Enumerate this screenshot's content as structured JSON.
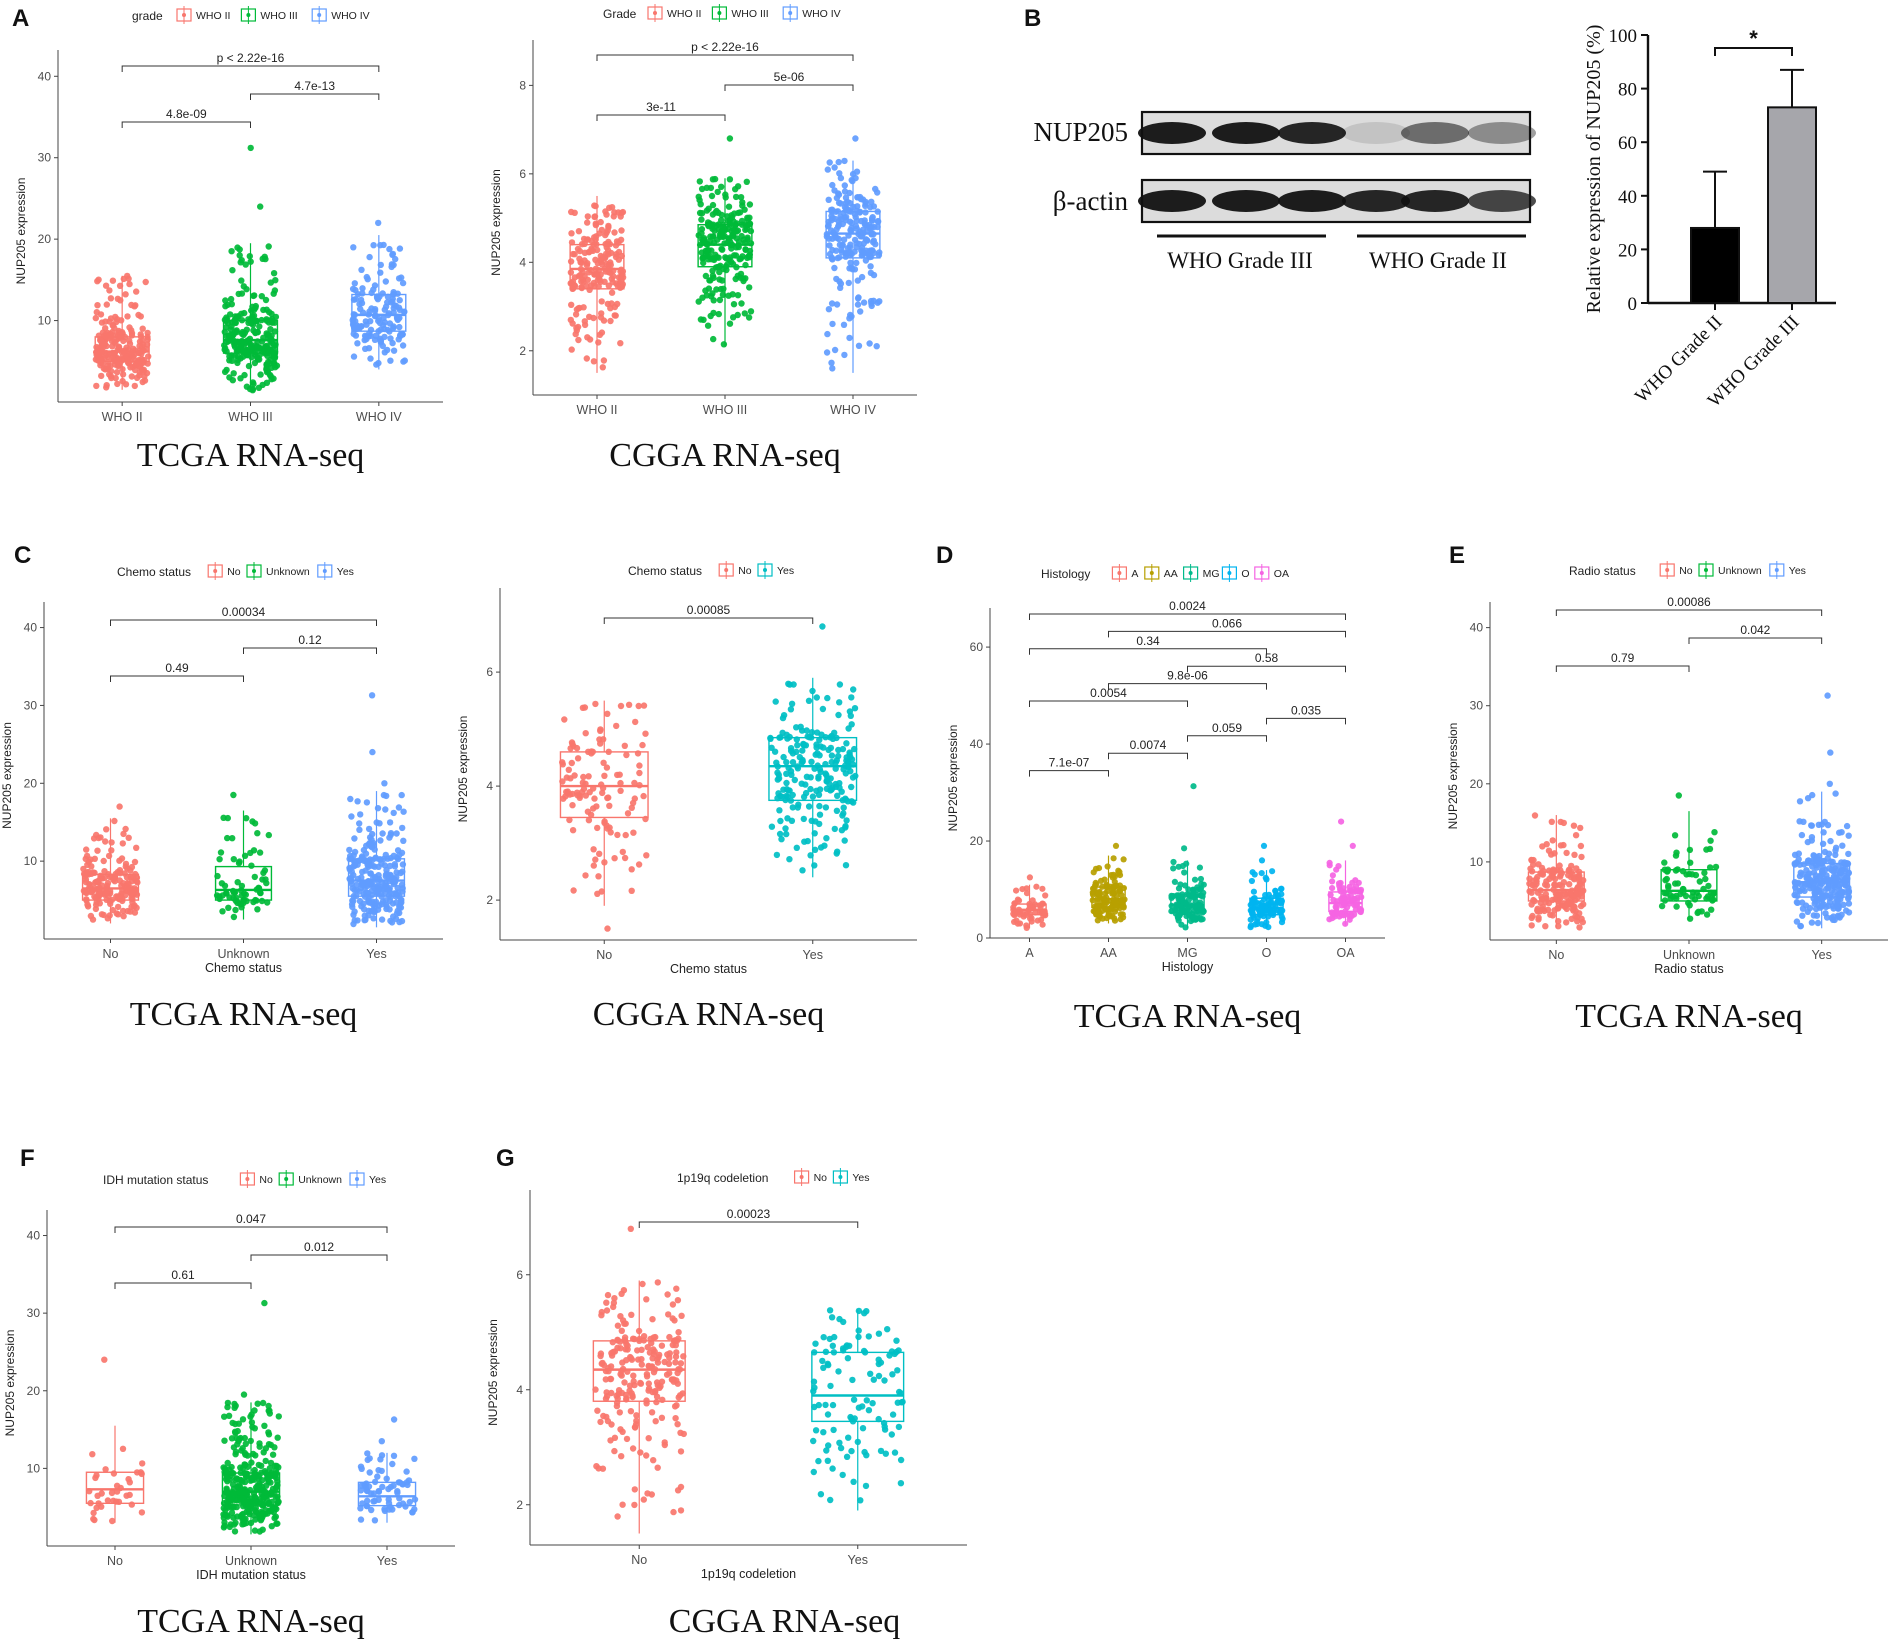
{
  "figure": {
    "y_label": "NUP205 expression",
    "tcga_caption": "TCGA RNA-seq",
    "cgga_caption": "CGGA RNA-seq"
  },
  "colors": {
    "red": "#F8766D",
    "green": "#00BA38",
    "blue": "#619CFF",
    "teal": "#00BFC4",
    "olive": "#B79F00",
    "mg": "#00BA8A",
    "o": "#00B4F0",
    "oa": "#F564E3",
    "wb_band": "#111111",
    "bar_black": "#000000",
    "bar_gray": "#A6A6AB"
  },
  "western_blot": {
    "panel": "B",
    "band_labels": [
      "NUP205",
      "β-actin"
    ],
    "group_labels": [
      "WHO Grade III",
      "WHO Grade II"
    ],
    "nup205_intensity": [
      0.95,
      0.95,
      0.9,
      0.12,
      0.55,
      0.4
    ],
    "actin_intensity": [
      0.95,
      0.95,
      0.95,
      0.9,
      0.9,
      0.75
    ]
  },
  "chart_data": [
    {
      "type": "boxplot",
      "panel": "A",
      "legend_title": "grade",
      "categories": [
        "WHO II",
        "WHO III",
        "WHO IV"
      ],
      "legend": [
        "WHO II",
        "WHO III",
        "WHO IV"
      ],
      "colors": [
        "#F8766D",
        "#00BA38",
        "#619CFF"
      ],
      "ylabel": "NUP205 expression",
      "xlabel": "",
      "yticks": [
        10,
        20,
        30,
        40
      ],
      "ylim": [
        0,
        42
      ],
      "boxes": [
        {
          "min": 1.5,
          "q1": 5,
          "median": 6.2,
          "q3": 8,
          "max": 15.5,
          "n": 230,
          "outliers": []
        },
        {
          "min": 1.2,
          "q1": 6,
          "median": 7.6,
          "q3": 10,
          "max": 19.5,
          "n": 250,
          "outliers": [
            24,
            31.2
          ]
        },
        {
          "min": 4,
          "q1": 8.7,
          "median": 10.7,
          "q3": 13.2,
          "max": 20.5,
          "n": 150,
          "outliers": [
            22
          ]
        }
      ],
      "comparisons": [
        {
          "a": 0,
          "b": 1,
          "label": "4.8e-09"
        },
        {
          "a": 0,
          "b": 2,
          "label": "p < 2.22e-16"
        },
        {
          "a": 1,
          "b": 2,
          "label": "4.7e-13"
        }
      ],
      "caption": "TCGA RNA-seq"
    },
    {
      "type": "boxplot",
      "panel": "",
      "legend_title": "Grade",
      "categories": [
        "WHO II",
        "WHO III",
        "WHO IV"
      ],
      "legend": [
        "WHO II",
        "WHO III",
        "WHO IV"
      ],
      "colors": [
        "#F8766D",
        "#00BA38",
        "#619CFF"
      ],
      "ylabel": "NUP205 expression",
      "xlabel": "",
      "yticks": [
        2,
        4,
        6,
        8
      ],
      "ylim": [
        1,
        8.8
      ],
      "boxes": [
        {
          "min": 1.5,
          "q1": 3.4,
          "median": 3.85,
          "q3": 4.4,
          "max": 5.5,
          "n": 200,
          "outliers": []
        },
        {
          "min": 2.1,
          "q1": 3.9,
          "median": 4.4,
          "q3": 4.85,
          "max": 5.9,
          "n": 230,
          "outliers": [
            6.8
          ]
        },
        {
          "min": 1.5,
          "q1": 4.1,
          "median": 4.65,
          "q3": 5.15,
          "max": 6.3,
          "n": 230,
          "outliers": [
            6.8
          ]
        }
      ],
      "comparisons": [
        {
          "a": 0,
          "b": 1,
          "label": "3e-11"
        },
        {
          "a": 0,
          "b": 2,
          "label": "p < 2.22e-16"
        },
        {
          "a": 1,
          "b": 2,
          "label": "5e-06"
        }
      ],
      "caption": "CGGA RNA-seq"
    },
    {
      "type": "bar",
      "panel": "B",
      "categories": [
        "WHO Grade II",
        "WHO Grade III"
      ],
      "values": [
        28,
        73
      ],
      "errors": [
        21,
        14
      ],
      "ylabel": "Relative expression of NUP205 (%)",
      "yticks": [
        0,
        20,
        40,
        60,
        80,
        100
      ],
      "ylim": [
        0,
        100
      ],
      "significance": "*"
    },
    {
      "type": "boxplot",
      "panel": "C",
      "legend_title": "Chemo status",
      "categories": [
        "No",
        "Unknown",
        "Yes"
      ],
      "legend": [
        "No",
        "Unknown",
        "Yes"
      ],
      "colors": [
        "#F8766D",
        "#00BA38",
        "#619CFF"
      ],
      "ylabel": "NUP205 expression",
      "xlabel": "Chemo status",
      "yticks": [
        10,
        20,
        30,
        40
      ],
      "ylim": [
        0,
        42
      ],
      "boxes": [
        {
          "min": 2,
          "q1": 5,
          "median": 6.5,
          "q3": 8.3,
          "max": 15.5,
          "n": 180,
          "outliers": [
            17
          ]
        },
        {
          "min": 2.5,
          "q1": 5,
          "median": 6.3,
          "q3": 9.3,
          "max": 16.5,
          "n": 70,
          "outliers": [
            18.5
          ]
        },
        {
          "min": 1.5,
          "q1": 5.5,
          "median": 7.5,
          "q3": 10.3,
          "max": 19,
          "n": 260,
          "outliers": [
            20,
            24,
            31.3
          ]
        }
      ],
      "comparisons": [
        {
          "a": 0,
          "b": 1,
          "label": "0.49"
        },
        {
          "a": 0,
          "b": 2,
          "label": "0.00034"
        },
        {
          "a": 1,
          "b": 2,
          "label": "0.12"
        }
      ],
      "caption": "TCGA RNA-seq"
    },
    {
      "type": "boxplot",
      "panel": "",
      "legend_title": "Chemo status",
      "categories": [
        "No",
        "Yes"
      ],
      "legend": [
        "No",
        "Yes"
      ],
      "colors": [
        "#F8766D",
        "#00BFC4"
      ],
      "ylabel": "NUP205 expression",
      "xlabel": "Chemo status",
      "yticks": [
        2,
        4,
        6
      ],
      "ylim": [
        1.3,
        7.3
      ],
      "boxes": [
        {
          "min": 1.9,
          "q1": 3.45,
          "median": 4.0,
          "q3": 4.6,
          "max": 5.5,
          "n": 120,
          "outliers": [
            1.5
          ]
        },
        {
          "min": 2.4,
          "q1": 3.75,
          "median": 4.35,
          "q3": 4.85,
          "max": 5.9,
          "n": 220,
          "outliers": [
            6.8
          ]
        }
      ],
      "comparisons": [
        {
          "a": 0,
          "b": 1,
          "label": "0.00085"
        }
      ],
      "caption": "CGGA RNA-seq"
    },
    {
      "type": "boxplot",
      "panel": "D",
      "legend_title": "Histology",
      "categories": [
        "A",
        "AA",
        "MG",
        "O",
        "OA"
      ],
      "legend": [
        "A",
        "AA",
        "MG",
        "O",
        "OA"
      ],
      "colors": [
        "#F8766D",
        "#B79F00",
        "#00BA8A",
        "#00B4F0",
        "#F564E3"
      ],
      "ylabel": "NUP205 expression",
      "xlabel": "Histology",
      "yticks": [
        0,
        20,
        40,
        60
      ],
      "ylim": [
        0,
        66
      ],
      "boxes": [
        {
          "min": 2,
          "q1": 4.8,
          "median": 5.8,
          "q3": 7,
          "max": 11,
          "n": 60,
          "outliers": [
            12.5
          ]
        },
        {
          "min": 3,
          "q1": 6.3,
          "median": 8,
          "q3": 10.5,
          "max": 17,
          "n": 130,
          "outliers": [
            19
          ]
        },
        {
          "min": 2,
          "q1": 5.2,
          "median": 6.8,
          "q3": 9,
          "max": 16,
          "n": 120,
          "outliers": [
            18.5,
            31.3
          ]
        },
        {
          "min": 2,
          "q1": 4.8,
          "median": 6.2,
          "q3": 8.2,
          "max": 14,
          "n": 100,
          "outliers": [
            16,
            19
          ]
        },
        {
          "min": 2.5,
          "q1": 5.5,
          "median": 7.2,
          "q3": 9.5,
          "max": 16,
          "n": 90,
          "outliers": [
            19,
            24
          ]
        }
      ],
      "comparisons": [
        {
          "a": 0,
          "b": 1,
          "label": "7.1e-07"
        },
        {
          "a": 0,
          "b": 2,
          "label": "0.0054"
        },
        {
          "a": 0,
          "b": 3,
          "label": "0.34"
        },
        {
          "a": 0,
          "b": 4,
          "label": "0.0024"
        },
        {
          "a": 1,
          "b": 2,
          "label": "0.0074"
        },
        {
          "a": 1,
          "b": 3,
          "label": "9.8e-06"
        },
        {
          "a": 1,
          "b": 4,
          "label": "0.066"
        },
        {
          "a": 2,
          "b": 3,
          "label": "0.059"
        },
        {
          "a": 2,
          "b": 4,
          "label": "0.58"
        },
        {
          "a": 3,
          "b": 4,
          "label": "0.035"
        }
      ],
      "caption": "TCGA RNA-seq"
    },
    {
      "type": "boxplot",
      "panel": "E",
      "legend_title": "Radio status",
      "categories": [
        "No",
        "Unknown",
        "Yes"
      ],
      "legend": [
        "No",
        "Unknown",
        "Yes"
      ],
      "colors": [
        "#F8766D",
        "#00BA38",
        "#619CFF"
      ],
      "ylabel": "NUP205 expression",
      "xlabel": "Radio status",
      "yticks": [
        10,
        20,
        30,
        40
      ],
      "ylim": [
        0,
        42
      ],
      "boxes": [
        {
          "min": 1.5,
          "q1": 5,
          "median": 6.4,
          "q3": 8.7,
          "max": 16,
          "n": 190,
          "outliers": []
        },
        {
          "min": 2.5,
          "q1": 5,
          "median": 6.3,
          "q3": 9,
          "max": 16.5,
          "n": 70,
          "outliers": [
            18.5
          ]
        },
        {
          "min": 1.5,
          "q1": 5.5,
          "median": 7.4,
          "q3": 9.8,
          "max": 19,
          "n": 260,
          "outliers": [
            20,
            24,
            31.3
          ]
        }
      ],
      "comparisons": [
        {
          "a": 0,
          "b": 1,
          "label": "0.79"
        },
        {
          "a": 0,
          "b": 2,
          "label": "0.00086"
        },
        {
          "a": 1,
          "b": 2,
          "label": "0.042"
        }
      ],
      "caption": "TCGA RNA-seq"
    },
    {
      "type": "boxplot",
      "panel": "F",
      "legend_title": "IDH mutation status",
      "categories": [
        "No",
        "Unknown",
        "Yes"
      ],
      "legend": [
        "No",
        "Unknown",
        "Yes"
      ],
      "colors": [
        "#F8766D",
        "#00BA38",
        "#619CFF"
      ],
      "ylabel": "NUP205 expression",
      "xlabel": "IDH mutation status",
      "yticks": [
        10,
        20,
        30,
        40
      ],
      "ylim": [
        0,
        42
      ],
      "boxes": [
        {
          "min": 3,
          "q1": 5.5,
          "median": 7.3,
          "q3": 9.5,
          "max": 15.5,
          "n": 35,
          "outliers": [
            24
          ]
        },
        {
          "min": 1.5,
          "q1": 5.3,
          "median": 7,
          "q3": 9.4,
          "max": 18.5,
          "n": 320,
          "outliers": [
            19.5,
            31.3
          ]
        },
        {
          "min": 3,
          "q1": 5.2,
          "median": 6.4,
          "q3": 8.2,
          "max": 12,
          "n": 70,
          "outliers": [
            13.5,
            16.3
          ]
        }
      ],
      "comparisons": [
        {
          "a": 0,
          "b": 1,
          "label": "0.61"
        },
        {
          "a": 0,
          "b": 2,
          "label": "0.047"
        },
        {
          "a": 1,
          "b": 2,
          "label": "0.012"
        }
      ],
      "caption": "TCGA RNA-seq"
    },
    {
      "type": "boxplot",
      "panel": "G",
      "legend_title": "1p19q codeletion",
      "categories": [
        "No",
        "Yes"
      ],
      "legend": [
        "No",
        "Yes"
      ],
      "colors": [
        "#F8766D",
        "#00BFC4"
      ],
      "ylabel": "NUP205 expression",
      "xlabel": "1p19q codeletion",
      "yticks": [
        2,
        4,
        6
      ],
      "ylim": [
        1.3,
        7.3
      ],
      "boxes": [
        {
          "min": 1.5,
          "q1": 3.8,
          "median": 4.35,
          "q3": 4.85,
          "max": 5.9,
          "n": 230,
          "outliers": [
            6.8
          ]
        },
        {
          "min": 1.9,
          "q1": 3.45,
          "median": 3.9,
          "q3": 4.65,
          "max": 5.4,
          "n": 110,
          "outliers": []
        }
      ],
      "comparisons": [
        {
          "a": 0,
          "b": 1,
          "label": "0.00023"
        }
      ],
      "caption": "CGGA RNA-seq"
    }
  ]
}
